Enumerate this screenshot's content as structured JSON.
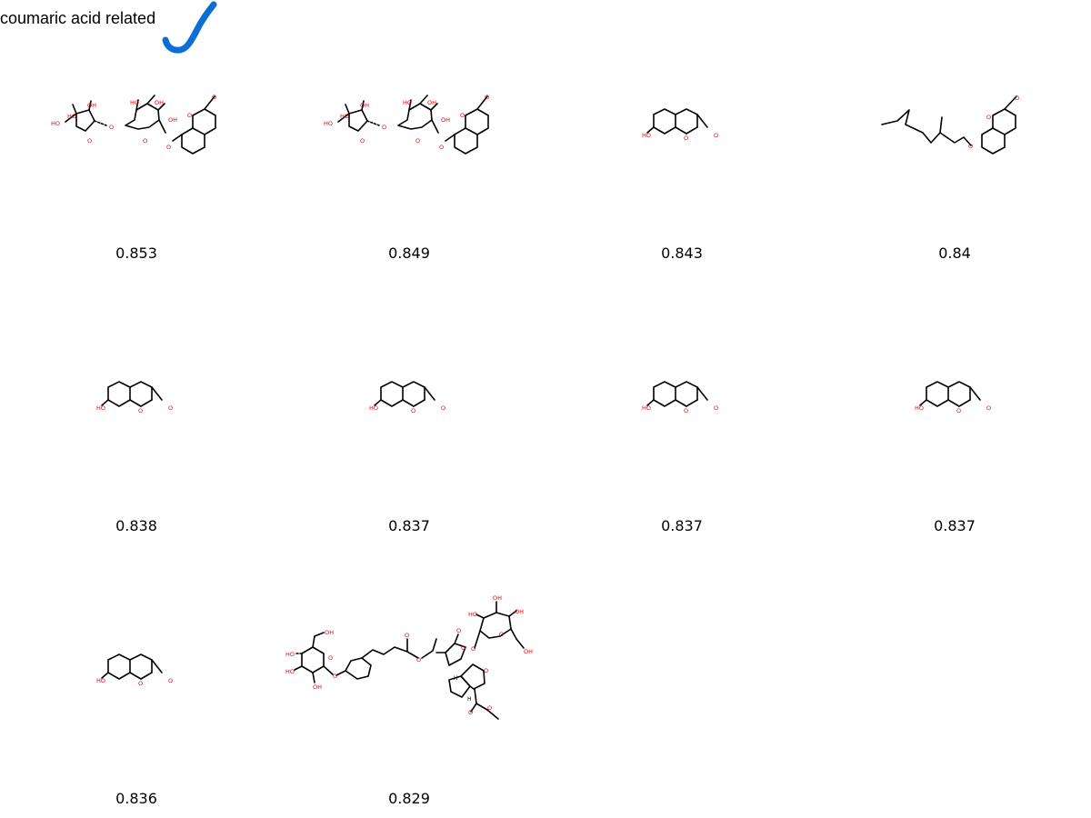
{
  "header": {
    "title": "coumaric acid related",
    "check_color": "#0b6fd6",
    "check_icon": "checkmark-icon"
  },
  "results": [
    {
      "score": "0.853",
      "structure": "coumarin-difuranosyl-glucoside"
    },
    {
      "score": "0.849",
      "structure": "coumarin-difuranosyl-glucoside"
    },
    {
      "score": "0.843",
      "structure": "umbelliferone"
    },
    {
      "score": "0.84",
      "structure": "geranyloxy-coumarin"
    },
    {
      "score": "0.838",
      "structure": "umbelliferone"
    },
    {
      "score": "0.837",
      "structure": "umbelliferone"
    },
    {
      "score": "0.837",
      "structure": "umbelliferone"
    },
    {
      "score": "0.837",
      "structure": "umbelliferone"
    },
    {
      "score": "0.836",
      "structure": "umbelliferone"
    },
    {
      "score": "0.829",
      "structure": "coumaroyl-iridoid-diglycoside"
    }
  ],
  "atom_labels": {
    "hydroxyl": "HO",
    "hydroxyl_right": "OH",
    "oxygen": "O",
    "hydrogen": "H"
  }
}
